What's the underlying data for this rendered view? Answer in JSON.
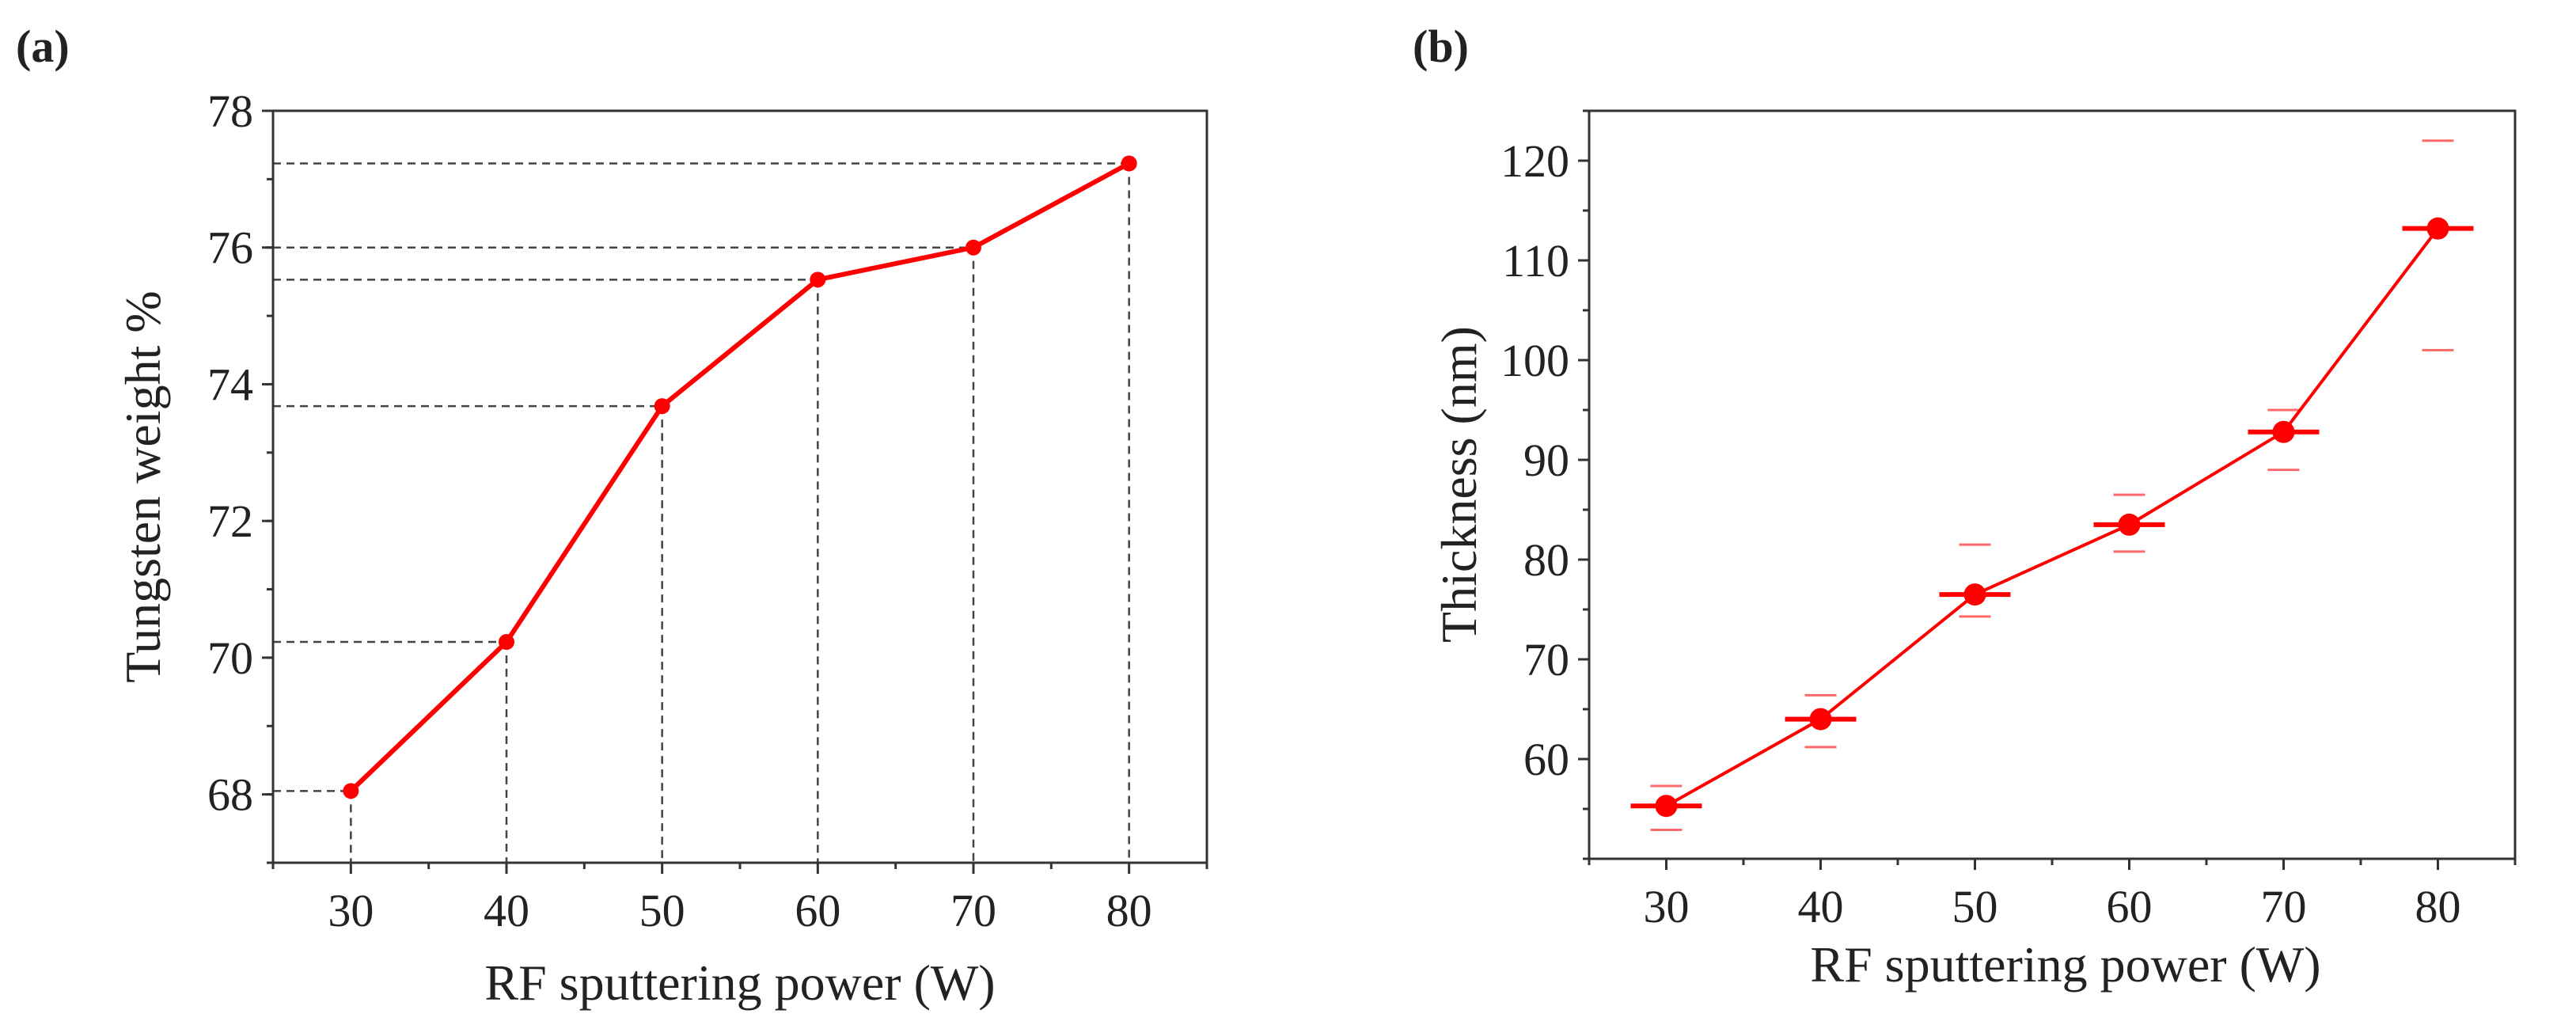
{
  "chart_data": [
    {
      "type": "line",
      "panel_label": "(a)",
      "x": [
        30,
        40,
        50,
        60,
        70,
        80
      ],
      "values": [
        68.05,
        70.23,
        73.68,
        75.53,
        76.0,
        77.23
      ],
      "xlabel": "RF sputtering power (W)",
      "ylabel": "Tungsten weight %",
      "xlim": [
        25,
        85
      ],
      "ylim": [
        67,
        78
      ],
      "x_ticks": [
        "30",
        "40",
        "50",
        "60",
        "70",
        "80"
      ],
      "y_ticks": [
        "68",
        "70",
        "72",
        "74",
        "76",
        "78"
      ],
      "reference_lines": "dashed drop lines to both axes",
      "color": "#ff0000"
    },
    {
      "type": "line",
      "panel_label": "(b)",
      "x": [
        30,
        40,
        50,
        60,
        70,
        80
      ],
      "values": [
        55.3,
        64.0,
        76.5,
        83.5,
        92.8,
        113.2
      ],
      "error_upper": [
        57.3,
        66.4,
        81.5,
        86.5,
        95.0,
        122.0
      ],
      "error_lower": [
        52.9,
        61.2,
        74.3,
        80.8,
        89.0,
        101.0
      ],
      "xlabel": "RF sputtering power (W)",
      "ylabel": "Thickness (nm)",
      "xlim": [
        25,
        85
      ],
      "ylim": [
        50,
        125
      ],
      "x_ticks": [
        "30",
        "40",
        "50",
        "60",
        "70",
        "80"
      ],
      "y_ticks": [
        "60",
        "70",
        "80",
        "90",
        "100",
        "110",
        "120"
      ],
      "color": "#ff0000"
    }
  ]
}
